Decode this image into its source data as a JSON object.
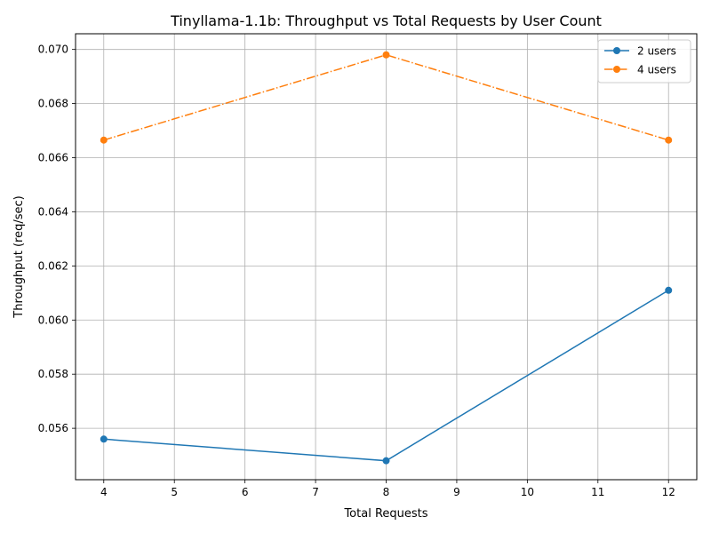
{
  "chart_data": {
    "type": "line",
    "title": "Tinyllama-1.1b: Throughput vs Total Requests by User Count",
    "xlabel": "Total Requests",
    "ylabel": "Throughput (req/sec)",
    "x": [
      4,
      8,
      12
    ],
    "xlim": [
      3.6,
      12.4
    ],
    "ylim": [
      0.0541,
      0.07058
    ],
    "xticks": [
      4,
      5,
      6,
      7,
      8,
      9,
      10,
      11,
      12
    ],
    "yticks": [
      0.056,
      0.058,
      0.06,
      0.062,
      0.064,
      0.066,
      0.068,
      0.07
    ],
    "grid": true,
    "legend_position": "top-right",
    "series": [
      {
        "name": "2 users",
        "values": [
          0.0556,
          0.0548,
          0.0611
        ],
        "color": "#1f77b4",
        "linestyle": "solid",
        "marker": "circle"
      },
      {
        "name": "4 users",
        "values": [
          0.06665,
          0.0698,
          0.06665
        ],
        "color": "#ff7f0e",
        "linestyle": "dashdot",
        "marker": "circle"
      }
    ]
  }
}
